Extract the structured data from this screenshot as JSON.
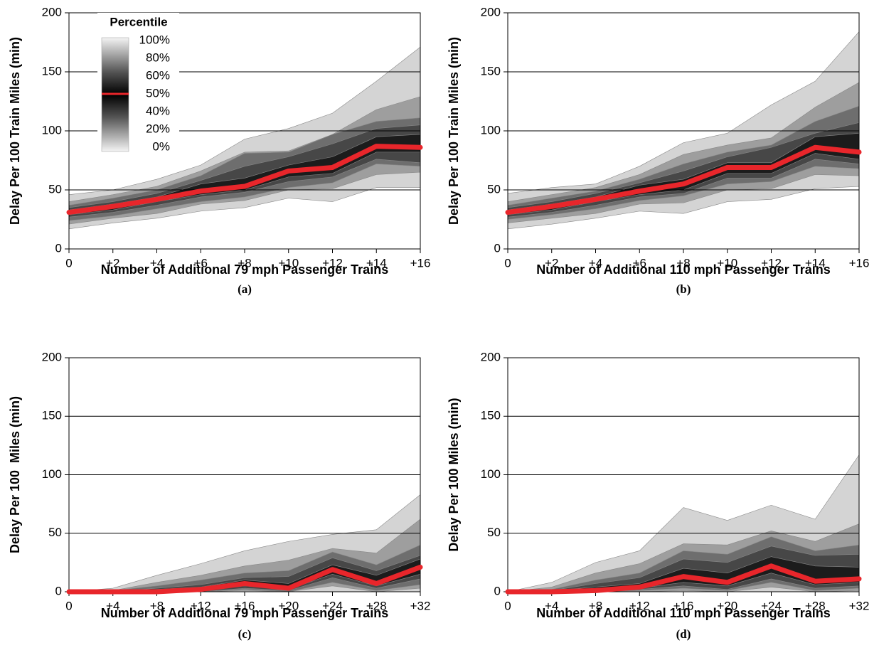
{
  "chart_data": [
    {
      "type": "area",
      "caption": "(a)",
      "ylabel": "Delay Per 100 Train Miles (min)",
      "xlabel": "Number of Additional 79 mph Passenger Trains",
      "categories": [
        "0",
        "+2",
        "+4",
        "+6",
        "+8",
        "+10",
        "+12",
        "+14",
        "+16"
      ],
      "ylim": [
        0,
        200
      ],
      "yticks": [
        0,
        50,
        100,
        150,
        200
      ],
      "grid": true,
      "legend": {
        "title": "Percentile",
        "labels": [
          "100%",
          "80%",
          "60%",
          "50%",
          "40%",
          "20%",
          "0%"
        ],
        "position": "upper left"
      },
      "series": [
        {
          "color": "#d4d4d4",
          "values": [
            46,
            50,
            59,
            71,
            93,
            102,
            115,
            142,
            171
          ]
        },
        {
          "color": "#9e9e9e",
          "values": [
            40,
            46,
            53,
            66,
            82,
            83,
            97,
            118,
            129
          ]
        },
        {
          "color": "#6e6e6e",
          "values": [
            37,
            43,
            50,
            62,
            81,
            82,
            97,
            108,
            111
          ]
        },
        {
          "color": "#474747",
          "values": [
            35,
            40,
            47,
            58,
            70,
            78,
            89,
            102,
            105
          ]
        },
        {
          "color": "#1c1c1c",
          "values": [
            33,
            38,
            44,
            55,
            60,
            71,
            78,
            95,
            97
          ]
        },
        {
          "color": "#474747",
          "values": [
            29,
            33,
            40,
            46,
            50,
            61,
            64,
            82,
            82
          ]
        },
        {
          "color": "#6e6e6e",
          "values": [
            27,
            31,
            37,
            44,
            48,
            57,
            61,
            76,
            73
          ]
        },
        {
          "color": "#9e9e9e",
          "values": [
            24,
            28,
            34,
            40,
            44,
            52,
            56,
            72,
            70
          ]
        },
        {
          "color": "#d4d4d4",
          "values": [
            21,
            26,
            30,
            38,
            41,
            50,
            51,
            63,
            65
          ]
        },
        {
          "color": "#ffffff",
          "values": [
            17,
            22,
            26,
            32,
            35,
            43,
            40,
            52,
            52
          ]
        }
      ],
      "median": {
        "color": "#e8262b",
        "values": [
          31,
          36,
          42,
          49,
          53,
          66,
          69,
          87,
          86
        ]
      }
    },
    {
      "type": "area",
      "caption": "(b)",
      "ylabel": "Delay Per 100 Train Miles (min)",
      "xlabel": "Number of Additional 110 mph Passenger Trains",
      "categories": [
        "0",
        "+2",
        "+4",
        "+6",
        "+8",
        "+10",
        "+12",
        "+14",
        "+16"
      ],
      "ylim": [
        0,
        200
      ],
      "yticks": [
        0,
        50,
        100,
        150,
        200
      ],
      "grid": true,
      "series": [
        {
          "color": "#d4d4d4",
          "values": [
            47,
            52,
            55,
            70,
            90,
            98,
            122,
            142,
            184
          ]
        },
        {
          "color": "#9e9e9e",
          "values": [
            40,
            46,
            52,
            63,
            80,
            88,
            94,
            120,
            141
          ]
        },
        {
          "color": "#6e6e6e",
          "values": [
            37,
            43,
            49,
            59,
            72,
            82,
            88,
            108,
            121
          ]
        },
        {
          "color": "#474747",
          "values": [
            35,
            40,
            47,
            56,
            66,
            78,
            86,
            98,
            107
          ]
        },
        {
          "color": "#1c1c1c",
          "values": [
            33,
            38,
            44,
            54,
            59,
            73,
            73,
            95,
            98
          ]
        },
        {
          "color": "#474747",
          "values": [
            29,
            33,
            40,
            46,
            50,
            64,
            64,
            81,
            76
          ]
        },
        {
          "color": "#6e6e6e",
          "values": [
            27,
            31,
            37,
            44,
            47,
            60,
            60,
            76,
            72
          ]
        },
        {
          "color": "#9e9e9e",
          "values": [
            25,
            29,
            34,
            41,
            45,
            55,
            57,
            70,
            68
          ]
        },
        {
          "color": "#d4d4d4",
          "values": [
            22,
            26,
            30,
            38,
            39,
            50,
            51,
            63,
            62
          ]
        },
        {
          "color": "#ffffff",
          "values": [
            17,
            21,
            26,
            32,
            30,
            40,
            42,
            51,
            53
          ]
        }
      ],
      "median": {
        "color": "#e8262b",
        "values": [
          31,
          36,
          42,
          49,
          55,
          69,
          69,
          86,
          82
        ]
      }
    },
    {
      "type": "area",
      "caption": "(c)",
      "ylabel": "Delay Per 100  Miles (min)",
      "xlabel": "Number of Additional 79 mph Passenger Trains",
      "categories": [
        "0",
        "+4",
        "+8",
        "+12",
        "+16",
        "+20",
        "+24",
        "+28",
        "+32"
      ],
      "ylim": [
        0,
        200
      ],
      "yticks": [
        0,
        50,
        100,
        150,
        200
      ],
      "grid": true,
      "series": [
        {
          "color": "#d4d4d4",
          "values": [
            0,
            3,
            14,
            24,
            35,
            43,
            49,
            53,
            83
          ]
        },
        {
          "color": "#9e9e9e",
          "values": [
            0,
            1,
            8,
            14,
            22,
            27,
            37,
            33,
            62
          ]
        },
        {
          "color": "#6e6e6e",
          "values": [
            0,
            1,
            5,
            10,
            16,
            18,
            34,
            23,
            40
          ]
        },
        {
          "color": "#474747",
          "values": [
            0,
            0,
            3,
            6,
            12,
            13,
            29,
            18,
            31
          ]
        },
        {
          "color": "#1c1c1c",
          "values": [
            0,
            0,
            2,
            4,
            10,
            7,
            23,
            14,
            28
          ]
        },
        {
          "color": "#474747",
          "values": [
            0,
            0,
            0,
            1,
            5,
            2,
            15,
            5,
            15
          ]
        },
        {
          "color": "#6e6e6e",
          "values": [
            0,
            0,
            0,
            0,
            3,
            1,
            12,
            3,
            11
          ]
        },
        {
          "color": "#9e9e9e",
          "values": [
            0,
            0,
            0,
            0,
            2,
            0,
            8,
            1,
            6
          ]
        },
        {
          "color": "#d4d4d4",
          "values": [
            0,
            0,
            0,
            0,
            1,
            0,
            5,
            0,
            3
          ]
        },
        {
          "color": "#ffffff",
          "values": [
            0,
            0,
            0,
            0,
            0,
            0,
            0,
            0,
            0
          ]
        }
      ],
      "median": {
        "color": "#e8262b",
        "values": [
          0,
          0,
          0,
          2,
          7,
          3,
          19,
          7,
          21
        ]
      }
    },
    {
      "type": "area",
      "caption": "(d)",
      "ylabel": "Delay Per 100 Miles (min)",
      "xlabel": "Number of Additional 110 mph Passenger Trains",
      "categories": [
        "0",
        "+4",
        "+8",
        "+12",
        "+16",
        "+20",
        "+24",
        "+28",
        "+32"
      ],
      "ylim": [
        0,
        200
      ],
      "yticks": [
        0,
        50,
        100,
        150,
        200
      ],
      "grid": true,
      "series": [
        {
          "color": "#d4d4d4",
          "values": [
            0,
            8,
            25,
            35,
            72,
            61,
            74,
            62,
            117
          ]
        },
        {
          "color": "#9e9e9e",
          "values": [
            0,
            4,
            16,
            24,
            41,
            40,
            52,
            43,
            58
          ]
        },
        {
          "color": "#6e6e6e",
          "values": [
            0,
            2,
            10,
            16,
            35,
            32,
            47,
            35,
            40
          ]
        },
        {
          "color": "#474747",
          "values": [
            0,
            1,
            7,
            12,
            28,
            25,
            39,
            31,
            32
          ]
        },
        {
          "color": "#1c1c1c",
          "values": [
            0,
            1,
            4,
            7,
            20,
            16,
            30,
            22,
            21
          ]
        },
        {
          "color": "#474747",
          "values": [
            0,
            0,
            1,
            3,
            8,
            5,
            16,
            6,
            8
          ]
        },
        {
          "color": "#6e6e6e",
          "values": [
            0,
            0,
            0,
            2,
            5,
            2,
            11,
            3,
            5
          ]
        },
        {
          "color": "#9e9e9e",
          "values": [
            0,
            0,
            0,
            1,
            3,
            1,
            8,
            1,
            3
          ]
        },
        {
          "color": "#d4d4d4",
          "values": [
            0,
            0,
            0,
            0,
            1,
            0,
            4,
            0,
            1
          ]
        },
        {
          "color": "#ffffff",
          "values": [
            0,
            0,
            0,
            0,
            0,
            0,
            0,
            0,
            0
          ]
        }
      ],
      "median": {
        "color": "#e8262b",
        "values": [
          0,
          0,
          1,
          4,
          13,
          8,
          22,
          9,
          11
        ]
      }
    }
  ]
}
